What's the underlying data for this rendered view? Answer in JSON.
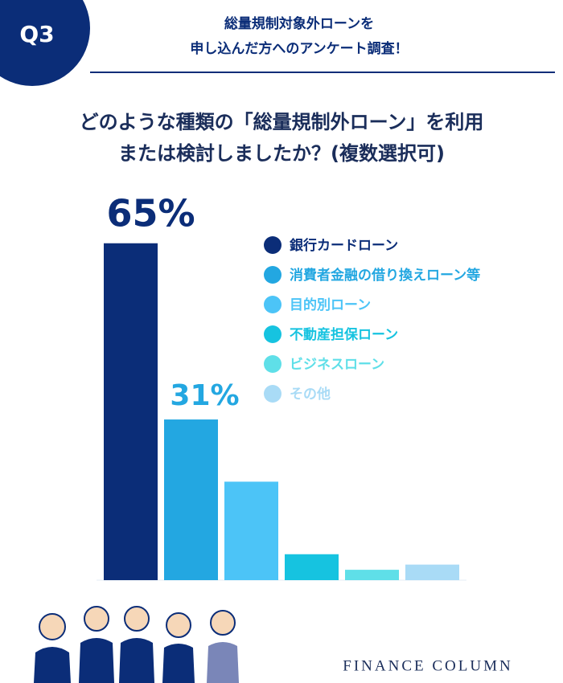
{
  "badge": "Q3",
  "header": {
    "lines": [
      "総量規制対象外ローンを",
      "申し込んだ方へのアンケート調査！"
    ]
  },
  "chart_data": {
    "type": "bar",
    "title": [
      "どのような種類の「総量規制外ローン」を利用",
      "または検討しましたか？(複数選択可)"
    ],
    "categories": [
      "銀行カードローン",
      "消費者金融の借り換えローン等",
      "目的別ローン",
      "不動産担保ローン",
      "ビジネスローン",
      "その他"
    ],
    "values": [
      65,
      31,
      19,
      5,
      2,
      3
    ],
    "value_labels": [
      "65%",
      "31%",
      null,
      null,
      null,
      null
    ],
    "colors": [
      "#0b2d78",
      "#23a7e1",
      "#4cc4f7",
      "#16c3e0",
      "#5fdfe8",
      "#a9dbf6"
    ]
  },
  "footer": "FINANCE COLUMN"
}
